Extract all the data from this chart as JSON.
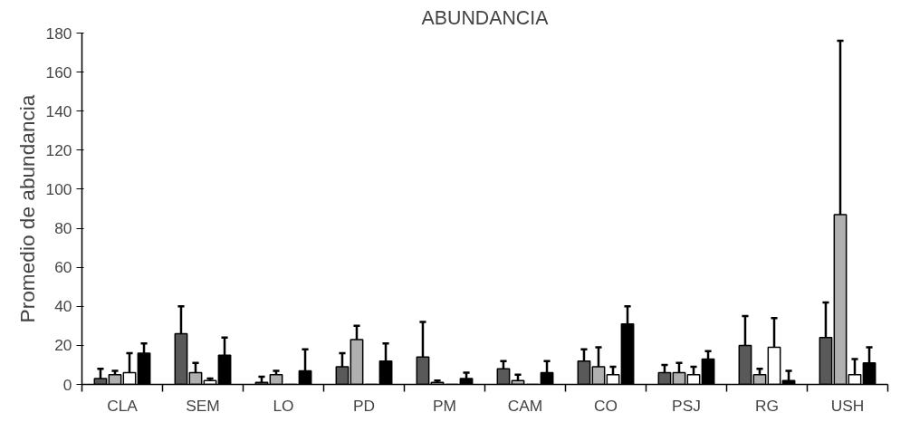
{
  "chart_data": {
    "type": "bar",
    "title": "ABUNDANCIA",
    "ylabel": "Promedio de abundancia",
    "categories": [
      "CLA",
      "SEM",
      "LO",
      "PD",
      "PM",
      "CAM",
      "CO",
      "PSJ",
      "RG",
      "USH"
    ],
    "series": [
      {
        "color": "#595959",
        "values": [
          3,
          26,
          1,
          9,
          14,
          8,
          12,
          6,
          20,
          24
        ],
        "errors": [
          [
            3,
            8
          ],
          [
            26,
            40
          ],
          [
            1,
            4
          ],
          [
            9,
            16
          ],
          [
            14,
            32
          ],
          [
            8,
            12
          ],
          [
            12,
            18
          ],
          [
            6,
            10
          ],
          [
            20,
            35
          ],
          [
            24,
            42
          ]
        ]
      },
      {
        "color": "#b0b0b0",
        "values": [
          5,
          6,
          5,
          23,
          1,
          2,
          9,
          6,
          5,
          87
        ],
        "errors": [
          [
            5,
            7
          ],
          [
            6,
            11
          ],
          [
            5,
            7
          ],
          [
            23,
            30
          ],
          [
            1,
            2
          ],
          [
            2,
            5
          ],
          [
            9,
            19
          ],
          [
            6,
            11
          ],
          [
            5,
            8
          ],
          [
            87,
            176
          ]
        ]
      },
      {
        "color": "#ffffff",
        "values": [
          6,
          2,
          0,
          0,
          0,
          0,
          5,
          5,
          19,
          5
        ],
        "errors": [
          [
            6,
            16
          ],
          [
            2,
            3
          ],
          null,
          null,
          null,
          null,
          [
            5,
            9
          ],
          [
            5,
            9
          ],
          [
            19,
            34
          ],
          [
            5,
            13
          ]
        ]
      },
      {
        "color": "#000000",
        "values": [
          16,
          15,
          7,
          12,
          3,
          6,
          31,
          13,
          2,
          11
        ],
        "errors": [
          [
            16,
            21
          ],
          [
            15,
            24
          ],
          [
            7,
            18
          ],
          [
            12,
            21
          ],
          [
            3,
            6
          ],
          [
            6,
            12
          ],
          [
            31,
            40
          ],
          [
            13,
            17
          ],
          [
            2,
            7
          ],
          [
            11,
            19
          ]
        ]
      }
    ],
    "ylim": [
      0,
      180
    ],
    "yticks": [
      0,
      20,
      40,
      60,
      80,
      100,
      120,
      140,
      160,
      180
    ],
    "grid": false
  }
}
